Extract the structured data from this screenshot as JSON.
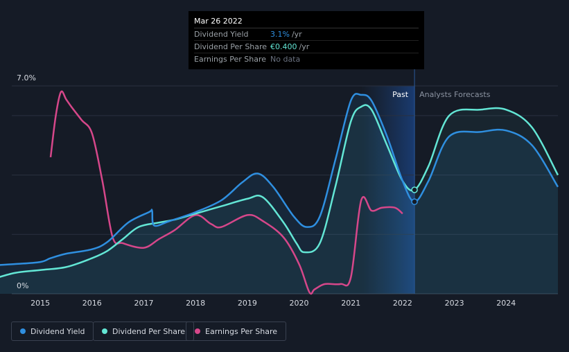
{
  "tooltip": {
    "date": "Mar 26 2022",
    "rows": [
      {
        "label": "Dividend Yield",
        "value": "3.1%",
        "unit": "/yr"
      },
      {
        "label": "Dividend Per Share",
        "value": "€0.400",
        "unit": "/yr"
      },
      {
        "label": "Earnings Per Share",
        "value": "No data"
      }
    ]
  },
  "labels": {
    "past": "Past",
    "forecast": "Analysts Forecasts"
  },
  "colors": {
    "yield": "#2f8fe0",
    "dps": "#63e6d5",
    "eps": "#d6478a",
    "background": "#151b26"
  },
  "legend": [
    {
      "name": "Dividend Yield",
      "color": "#2f8fe0"
    },
    {
      "name": "Dividend Per Share",
      "color": "#63e6d5"
    },
    {
      "name": "Earnings Per Share",
      "color": "#d6478a"
    }
  ],
  "chart_data": {
    "type": "line",
    "title": "",
    "xlabel": "",
    "ylabel": "",
    "xlim": [
      2014.0,
      2025.0
    ],
    "ylim": [
      0,
      7.0
    ],
    "y_tick_labels": [
      "0%",
      "7.0%"
    ],
    "x_ticks": [
      2015,
      2016,
      2017,
      2018,
      2019,
      2020,
      2021,
      2022,
      2023,
      2024
    ],
    "today": 2022.23,
    "series": [
      {
        "name": "Dividend Yield",
        "x": [
          2014.0,
          2014.5,
          2015.0,
          2015.2,
          2015.5,
          2016.0,
          2016.3,
          2016.7,
          2017.1,
          2017.16,
          2017.2,
          2017.5,
          2018.0,
          2018.5,
          2018.9,
          2019.2,
          2019.5,
          2019.9,
          2020.15,
          2020.4,
          2020.7,
          2021.0,
          2021.2,
          2021.4,
          2021.7,
          2022.0,
          2022.23,
          2022.5,
          2022.9,
          2023.5,
          2024.0,
          2024.5,
          2025.0
        ],
        "values": [
          0.95,
          1.0,
          1.07,
          1.2,
          1.35,
          1.5,
          1.75,
          2.4,
          2.75,
          2.8,
          2.3,
          2.45,
          2.75,
          3.15,
          3.75,
          4.05,
          3.6,
          2.6,
          2.25,
          2.6,
          4.5,
          6.5,
          6.7,
          6.5,
          5.3,
          3.8,
          3.1,
          3.8,
          5.3,
          5.45,
          5.5,
          5.0,
          3.6
        ]
      },
      {
        "name": "Dividend Per Share",
        "x": [
          2014.0,
          2014.5,
          2015.0,
          2015.5,
          2016.0,
          2016.3,
          2016.6,
          2016.9,
          2017.3,
          2017.6,
          2018.0,
          2018.5,
          2019.0,
          2019.3,
          2019.7,
          2019.95,
          2020.1,
          2020.4,
          2020.7,
          2021.0,
          2021.2,
          2021.4,
          2021.7,
          2022.0,
          2022.23,
          2022.5,
          2022.9,
          2023.5,
          2024.0,
          2024.5,
          2025.0
        ],
        "values": [
          0.45,
          0.7,
          0.8,
          0.9,
          1.2,
          1.45,
          1.85,
          2.25,
          2.4,
          2.5,
          2.7,
          2.95,
          3.2,
          3.25,
          2.4,
          1.7,
          1.4,
          1.7,
          3.6,
          5.8,
          6.3,
          6.2,
          5.0,
          3.8,
          3.5,
          4.3,
          6.0,
          6.2,
          6.2,
          5.6,
          4.0
        ]
      },
      {
        "name": "Earnings Per Share",
        "x": [
          2015.2,
          2015.3,
          2015.4,
          2015.5,
          2015.6,
          2015.8,
          2016.0,
          2016.2,
          2016.4,
          2016.6,
          2017.0,
          2017.3,
          2017.6,
          2018.0,
          2018.3,
          2018.5,
          2019.0,
          2019.3,
          2019.7,
          2020.0,
          2020.2,
          2020.3,
          2020.5,
          2020.8,
          2021.0,
          2021.2,
          2021.4,
          2021.6,
          2021.85,
          2022.0
        ],
        "values": [
          4.6,
          6.0,
          6.8,
          6.55,
          6.3,
          5.85,
          5.4,
          3.8,
          1.9,
          1.7,
          1.55,
          1.85,
          2.15,
          2.65,
          2.35,
          2.25,
          2.65,
          2.45,
          1.9,
          1.0,
          0.05,
          0.15,
          0.33,
          0.33,
          0.55,
          3.15,
          2.8,
          2.9,
          2.9,
          2.7
        ]
      }
    ]
  }
}
